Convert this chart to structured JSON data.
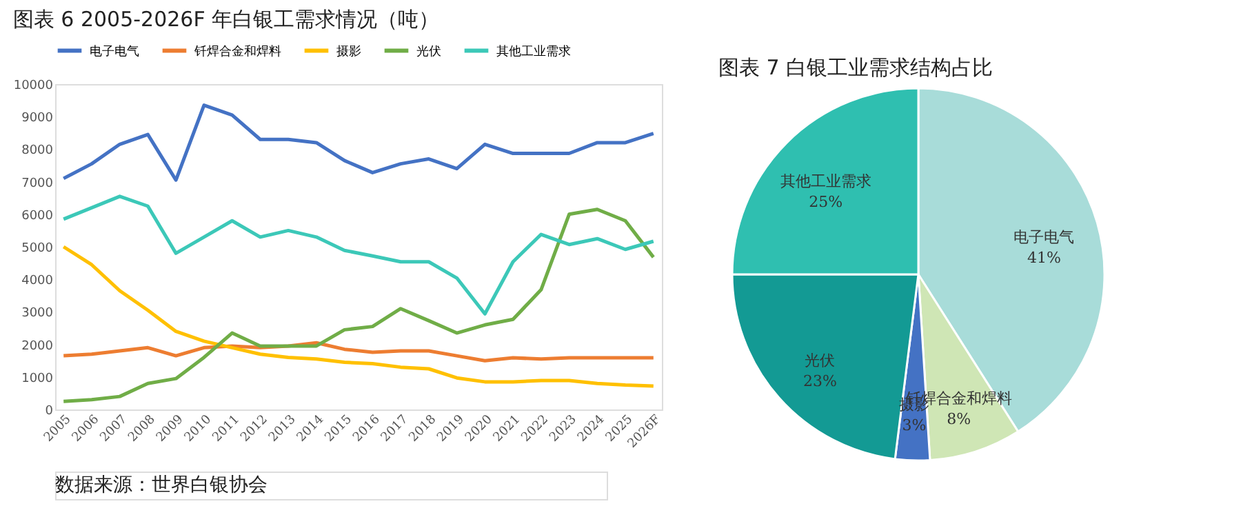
{
  "chart_data": [
    {
      "type": "line",
      "title": "图表  6 2005-2026F 年白银工需求情况（吨）",
      "categories": [
        "2005",
        "2006",
        "2007",
        "2008",
        "2009",
        "2010",
        "2011",
        "2012",
        "2013",
        "2014",
        "2015",
        "2016",
        "2017",
        "2018",
        "2019",
        "2020",
        "2021",
        "2022",
        "2023",
        "2024",
        "2025",
        "2026F"
      ],
      "series": [
        {
          "name": "电子电气",
          "color": "#4472c4",
          "values": [
            7100,
            7550,
            8150,
            8450,
            7050,
            9350,
            9050,
            8300,
            8300,
            8200,
            7650,
            7280,
            7550,
            7700,
            7400,
            8150,
            7870,
            7870,
            7870,
            8200,
            8200,
            8480
          ]
        },
        {
          "name": "钎焊合金和焊料",
          "color": "#ed7d31",
          "values": [
            1650,
            1700,
            1800,
            1900,
            1650,
            1900,
            1950,
            1900,
            1950,
            2050,
            1850,
            1760,
            1800,
            1800,
            1650,
            1500,
            1590,
            1550,
            1590,
            1590,
            1590,
            1590
          ]
        },
        {
          "name": "摄影",
          "color": "#ffc000",
          "values": [
            5000,
            4450,
            3650,
            3050,
            2400,
            2100,
            1900,
            1700,
            1600,
            1550,
            1450,
            1410,
            1300,
            1250,
            970,
            850,
            850,
            890,
            890,
            800,
            750,
            720
          ]
        },
        {
          "name": "光伏",
          "color": "#70ad47",
          "values": [
            250,
            300,
            400,
            800,
            950,
            1600,
            2350,
            1950,
            1950,
            1950,
            2450,
            2550,
            3100,
            2730,
            2350,
            2600,
            2770,
            3680,
            6000,
            6150,
            5800,
            4680
          ]
        },
        {
          "name": "其他工业需求",
          "color": "#3cc8b8",
          "values": [
            5850,
            6200,
            6550,
            6250,
            4800,
            5300,
            5800,
            5300,
            5500,
            5300,
            4890,
            4720,
            4540,
            4540,
            4040,
            2940,
            4540,
            5380,
            5070,
            5250,
            4920,
            5170
          ]
        }
      ],
      "ylim": [
        0,
        10000
      ],
      "yticks": [
        0,
        1000,
        2000,
        3000,
        4000,
        5000,
        6000,
        7000,
        8000,
        9000,
        10000
      ],
      "grid": false,
      "legend": "top",
      "marker": "none",
      "line_style": "solid",
      "annotations": [
        "数据来源：世界白银协会"
      ]
    },
    {
      "type": "pie",
      "title": "图表  7  白银工业需求结构占比",
      "categories": [
        "电子电气",
        "钎焊合金和焊料",
        "摄影",
        "光伏",
        "其他工业需求"
      ],
      "values": [
        41,
        8,
        3,
        23,
        25
      ],
      "colors": [
        "#a8dcd9",
        "#cfe6b5",
        "#4472c4",
        "#139a94",
        "#2fbfb0"
      ],
      "value_labels": [
        "41%",
        "8%",
        "3%",
        "23%",
        "25%"
      ]
    }
  ]
}
